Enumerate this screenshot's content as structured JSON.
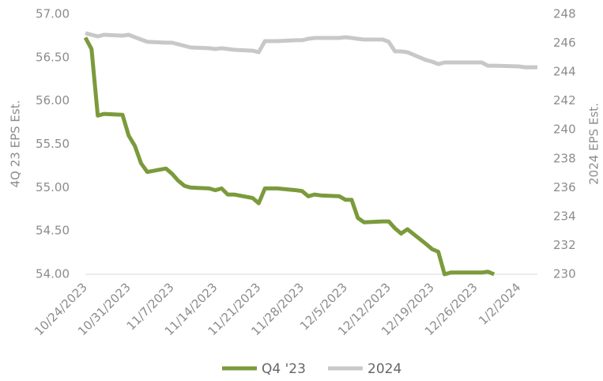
{
  "chart_data": {
    "type": "line",
    "x": [
      "10/24/2023",
      "10/25/2023",
      "10/26/2023",
      "10/27/2023",
      "10/30/2023",
      "10/31/2023",
      "11/1/2023",
      "11/2/2023",
      "11/3/2023",
      "11/6/2023",
      "11/7/2023",
      "11/8/2023",
      "11/9/2023",
      "11/10/2023",
      "11/13/2023",
      "11/14/2023",
      "11/15/2023",
      "11/16/2023",
      "11/17/2023",
      "11/20/2023",
      "11/21/2023",
      "11/22/2023",
      "11/24/2023",
      "11/27/2023",
      "11/28/2023",
      "11/29/2023",
      "11/30/2023",
      "12/1/2023",
      "12/4/2023",
      "12/5/2023",
      "12/6/2023",
      "12/7/2023",
      "12/8/2023",
      "12/11/2023",
      "12/12/2023",
      "12/13/2023",
      "12/14/2023",
      "12/15/2023",
      "12/18/2023",
      "12/19/2023",
      "12/20/2023",
      "12/21/2023",
      "12/22/2023",
      "12/26/2023",
      "12/27/2023",
      "12/28/2023",
      "12/29/2023",
      "1/2/2024",
      "1/3/2024",
      "1/4/2024",
      "1/5/2024"
    ],
    "series": [
      {
        "name": "Q4 '23",
        "color": "#7b9a3c",
        "axis": "y",
        "values": [
          56.73,
          56.6,
          55.83,
          55.85,
          55.84,
          55.6,
          55.48,
          55.28,
          55.18,
          55.22,
          55.16,
          55.08,
          55.02,
          55.0,
          54.99,
          54.97,
          54.99,
          54.92,
          54.92,
          54.88,
          54.82,
          54.99,
          54.99,
          54.97,
          54.96,
          54.9,
          54.92,
          54.91,
          54.9,
          54.86,
          54.86,
          54.65,
          54.6,
          54.61,
          54.61,
          54.53,
          54.47,
          54.52,
          54.35,
          54.29,
          54.26,
          54.0,
          54.02,
          54.02,
          54.02,
          54.03,
          54.0,
          null,
          null,
          null,
          null
        ]
      },
      {
        "name": "2024",
        "color": "#c8c8c8",
        "axis": "y2",
        "values": [
          246.69,
          246.58,
          246.47,
          246.58,
          246.52,
          246.58,
          246.41,
          246.25,
          246.09,
          246.03,
          246.03,
          245.92,
          245.81,
          245.7,
          245.65,
          245.59,
          245.65,
          245.59,
          245.54,
          245.48,
          245.37,
          246.14,
          246.14,
          246.2,
          246.2,
          246.3,
          246.36,
          246.36,
          246.36,
          246.41,
          246.36,
          246.3,
          246.25,
          246.25,
          246.09,
          245.43,
          245.43,
          245.37,
          244.83,
          244.72,
          244.55,
          244.66,
          244.66,
          244.66,
          244.66,
          244.44,
          244.44,
          244.39,
          244.33,
          244.33,
          244.33
        ]
      }
    ],
    "xlim": [
      "10/24/2023",
      "1/5/2024"
    ],
    "xticks": [
      "10/24/2023",
      "10/31/2023",
      "11/7/2023",
      "11/14/2023",
      "11/21/2023",
      "11/28/2023",
      "12/5/2023",
      "12/12/2023",
      "12/19/2023",
      "12/26/2023",
      "1/2/2024"
    ],
    "ylabel": "4Q 23 EPS Est.",
    "ylim": [
      54,
      57
    ],
    "yticks": [
      {
        "value": 54,
        "label": "54.00"
      },
      {
        "value": 54.5,
        "label": "54.50"
      },
      {
        "value": 55,
        "label": "55.00"
      },
      {
        "value": 55.5,
        "label": "55.50"
      },
      {
        "value": 56,
        "label": "56.00"
      },
      {
        "value": 56.5,
        "label": "56.50"
      },
      {
        "value": 57,
        "label": "57.00"
      }
    ],
    "y2label": "2024 EPS Est.",
    "y2lim": [
      230,
      248
    ],
    "y2ticks": [
      230,
      232,
      234,
      236,
      238,
      240,
      242,
      244,
      246,
      248
    ],
    "legend": "bottom"
  }
}
